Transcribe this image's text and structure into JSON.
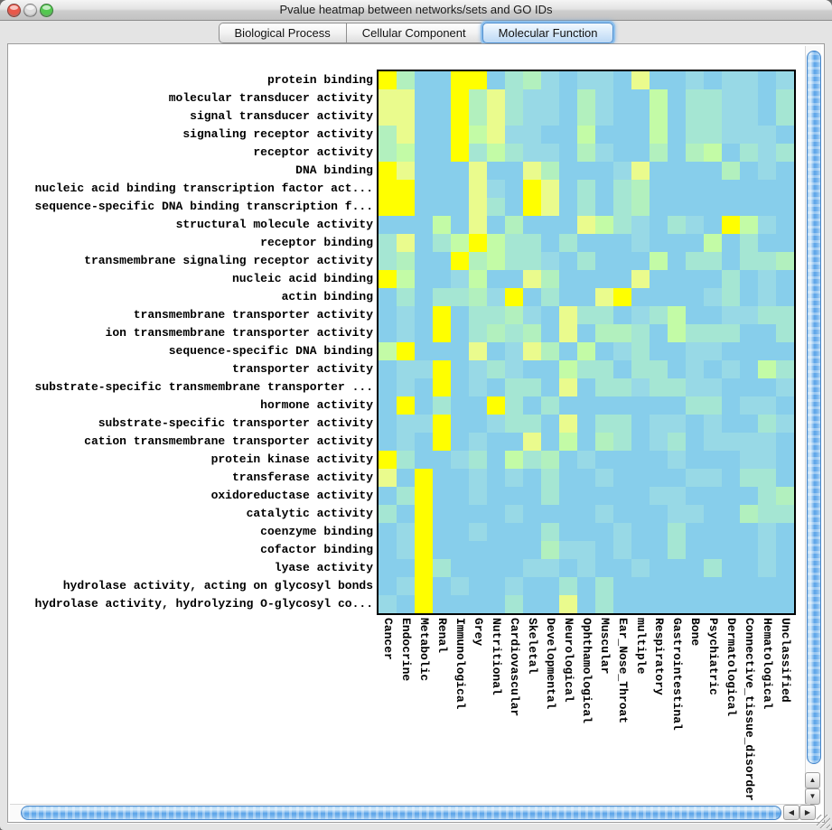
{
  "window": {
    "title": "Pvalue heatmap between networks/sets and GO IDs",
    "traffic_lights": {
      "close_color": "#e9574a",
      "minimize_color": "#dcdcdc",
      "zoom_color": "#52c84f"
    }
  },
  "tabs": {
    "items": [
      {
        "label": "Biological Process",
        "selected": false
      },
      {
        "label": "Cellular Component",
        "selected": false
      },
      {
        "label": "Molecular Function",
        "selected": true
      }
    ]
  },
  "scrollbars": {
    "up_icon": "▲",
    "down_icon": "▼",
    "left_icon": "◀",
    "right_icon": "▶"
  },
  "heatmap": {
    "type": "heatmap",
    "axis_color": "#000000",
    "row_labels": [
      "protein binding",
      "molecular transducer activity",
      "signal transducer activity",
      "signaling receptor activity",
      "receptor activity",
      "DNA binding",
      "nucleic acid binding transcription factor act...",
      "sequence-specific DNA binding transcription f...",
      "structural molecule activity",
      "receptor binding",
      "transmembrane signaling receptor activity",
      "nucleic acid binding",
      "actin binding",
      "transmembrane transporter activity",
      "ion transmembrane transporter activity",
      "sequence-specific DNA binding",
      "transporter activity",
      "substrate-specific transmembrane transporter ...",
      "hormone activity",
      "substrate-specific transporter activity",
      "cation transmembrane transporter activity",
      "protein kinase activity",
      "transferase activity",
      "oxidoreductase activity",
      "catalytic activity",
      "coenzyme binding",
      "cofactor binding",
      "lyase activity",
      "hydrolase activity, acting on glycosyl bonds",
      "hydrolase activity, hydrolyzing O-glycosyl co..."
    ],
    "col_labels": [
      "Cancer",
      "Endocrine",
      "Metabolic",
      "Renal",
      "Immunological",
      "Grey",
      "Nutritional",
      "Cardiovascular",
      "Skeletal",
      "Developmental",
      "Neurological",
      "Ophthamological",
      "Muscular",
      "Ear_Nose_Throat",
      "multiple",
      "Respiratory",
      "Gastrointestinal",
      "Bone",
      "Psychiatric",
      "Dermatological",
      "Connective_tissue_disorder",
      "Hematological",
      "Unclassified"
    ],
    "palette": [
      "#87CEEB",
      "#98D9E6",
      "#A5E6D3",
      "#B2F0BE",
      "#C3FBA6",
      "#EAFB8D",
      "#FFFF00"
    ],
    "palette_note": "0=low(blue) to 6=high(yellow) significance",
    "cells": [
      "63006602310110500101101",
      "55006352110310040221102",
      "55006352110310040221102",
      "35006451100400040221110",
      "34006242110310030340212",
      "65000500530001500003010",
      "66000510650202300000000",
      "66000520650202300000000",
      "00040503000542102106410",
      "25024642202000100040200",
      "23006342210200040220223",
      "64001400530000500002010",
      "02022316020056000012010",
      "01060223105220124001122",
      "01060232305033204222002",
      "46000501530401200110000",
      "01160121004220220101042",
      "01060102205022122110001",
      "06020062020000000220110",
      "01160012205022011010021",
      "01060100504032012011110",
      "62001204230100001000110",
      "50600101020010000110220",
      "02600100020000011000023",
      "20600001000010001100322",
      "01600100020001002000010",
      "01600000031101002000010",
      "00620000110100100020010",
      "01601001002020000000000",
      "10600002005020000000000"
    ],
    "cell_size": 20
  }
}
